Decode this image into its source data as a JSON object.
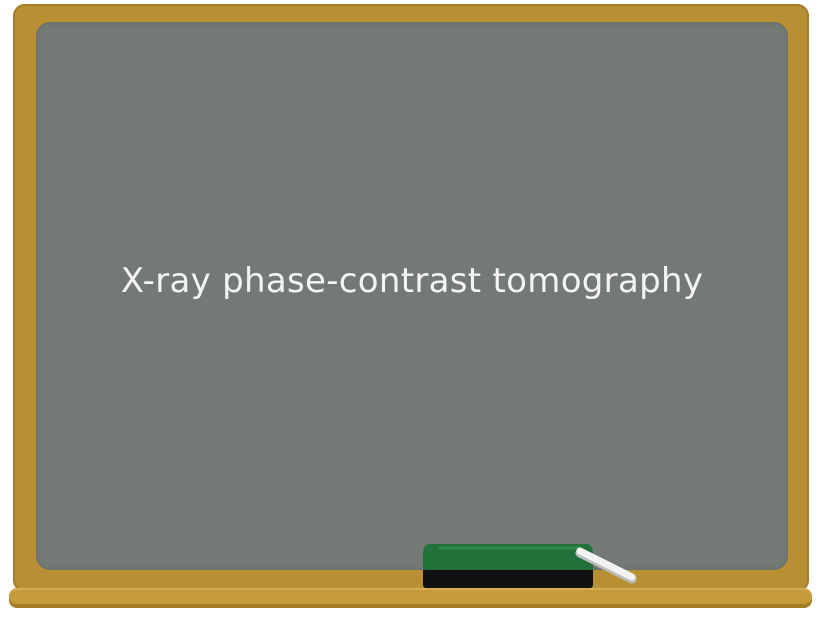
{
  "board": {
    "title": "X-ray phase-contrast tomography"
  },
  "colors": {
    "frame": "#b88f32",
    "board": "#737975",
    "chalk_text": "#f4f4f2",
    "eraser_felt": "#22703a",
    "eraser_base": "#111111",
    "chalk": "#f2f2f2"
  },
  "icons": {
    "eraser": "eraser-icon",
    "chalk": "chalk-stick-icon"
  }
}
